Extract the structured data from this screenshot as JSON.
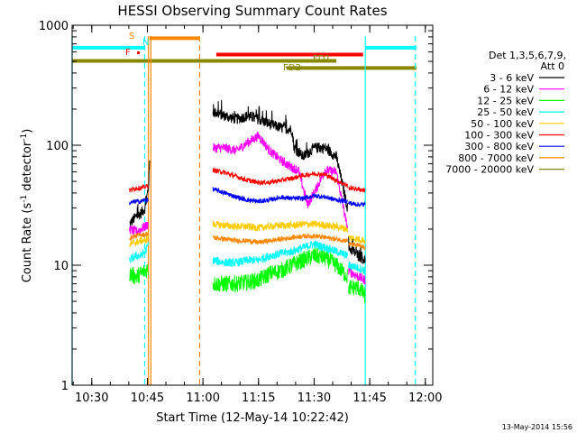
{
  "chart_data": {
    "type": "line",
    "title": "HESSI Observing Summary Count Rates",
    "xlabel": "Start Time (12-May-14 10:22:42)",
    "ylabel_main": "Count Rate (s",
    "ylabel_sup1": "-1",
    "ylabel_mid": " detector",
    "ylabel_sup2": "-1",
    "ylabel_end": ")",
    "yscale": "log",
    "ylim": [
      1,
      1000
    ],
    "xlim": [
      10.4117,
      12.0333
    ],
    "x_ticks": [
      {
        "value": 10.5,
        "label": "10:30"
      },
      {
        "value": 10.75,
        "label": "10:45"
      },
      {
        "value": 11.0,
        "label": "11:00"
      },
      {
        "value": 11.25,
        "label": "11:15"
      },
      {
        "value": 11.5,
        "label": "11:30"
      },
      {
        "value": 11.75,
        "label": "11:45"
      },
      {
        "value": 12.0,
        "label": "12:00"
      }
    ],
    "y_ticks": [
      {
        "value": 1,
        "label": "1"
      },
      {
        "value": 10,
        "label": "10"
      },
      {
        "value": 100,
        "label": "100"
      },
      {
        "value": 1000,
        "label": "1000"
      }
    ],
    "legend": {
      "header1": "Det 1,3,5,6,7,9,",
      "header2": "Att 0",
      "placement": "right"
    },
    "series": [
      {
        "name": "3 - 6 keV",
        "color": "#000000",
        "noise": 0.045,
        "spikes": true,
        "segments": [
          {
            "points": [
              [
                10.67,
                22
              ],
              [
                10.695,
                25
              ],
              [
                10.72,
                27
              ],
              [
                10.74,
                30
              ],
              [
                10.755,
                45
              ],
              [
                10.76,
                70
              ]
            ]
          },
          {
            "points": [
              [
                11.045,
                190
              ],
              [
                11.1,
                175
              ],
              [
                11.15,
                165
              ],
              [
                11.2,
                175
              ],
              [
                11.25,
                165
              ],
              [
                11.3,
                150
              ],
              [
                11.35,
                140
              ],
              [
                11.4,
                135
              ],
              [
                11.41,
                95
              ],
              [
                11.45,
                80
              ],
              [
                11.5,
                95
              ],
              [
                11.55,
                95
              ],
              [
                11.6,
                80
              ],
              [
                11.65,
                30
              ]
            ]
          },
          {
            "points": [
              [
                11.655,
                14
              ],
              [
                11.7,
                12
              ],
              [
                11.73,
                11
              ]
            ]
          }
        ]
      },
      {
        "name": "6 - 12 keV",
        "color": "#ff00ff",
        "noise": 0.04,
        "segments": [
          {
            "points": [
              [
                10.67,
                20
              ],
              [
                10.7,
                19
              ],
              [
                10.72,
                20
              ],
              [
                10.74,
                21
              ],
              [
                10.755,
                22
              ]
            ]
          },
          {
            "points": [
              [
                11.045,
                95
              ],
              [
                11.1,
                95
              ],
              [
                11.15,
                90
              ],
              [
                11.2,
                105
              ],
              [
                11.25,
                120
              ],
              [
                11.3,
                90
              ],
              [
                11.35,
                75
              ],
              [
                11.4,
                65
              ],
              [
                11.43,
                62
              ],
              [
                11.47,
                32
              ],
              [
                11.5,
                40
              ],
              [
                11.55,
                62
              ],
              [
                11.6,
                60
              ],
              [
                11.65,
                20
              ]
            ]
          },
          {
            "points": [
              [
                11.655,
                9
              ],
              [
                11.7,
                8
              ],
              [
                11.73,
                7.5
              ]
            ]
          }
        ]
      },
      {
        "name": "12 - 25 keV",
        "color": "#00ff00",
        "noise": 0.07,
        "segments": [
          {
            "points": [
              [
                10.67,
                8.5
              ],
              [
                10.7,
                8
              ],
              [
                10.72,
                8.5
              ],
              [
                10.74,
                9
              ],
              [
                10.755,
                9.5
              ]
            ]
          },
          {
            "points": [
              [
                11.045,
                7
              ],
              [
                11.1,
                7
              ],
              [
                11.15,
                7
              ],
              [
                11.2,
                7.2
              ],
              [
                11.25,
                7.5
              ],
              [
                11.3,
                8.5
              ],
              [
                11.35,
                9
              ],
              [
                11.4,
                10
              ],
              [
                11.45,
                11
              ],
              [
                11.5,
                12
              ],
              [
                11.55,
                11.5
              ],
              [
                11.6,
                10
              ],
              [
                11.65,
                8
              ]
            ]
          },
          {
            "points": [
              [
                11.655,
                6.5
              ],
              [
                11.7,
                6.5
              ],
              [
                11.73,
                5.5
              ]
            ]
          }
        ]
      },
      {
        "name": "25 - 50 keV",
        "color": "#00ffff",
        "noise": 0.035,
        "segments": [
          {
            "points": [
              [
                10.67,
                11
              ],
              [
                10.7,
                12
              ],
              [
                10.72,
                12
              ],
              [
                10.74,
                13
              ],
              [
                10.755,
                15
              ]
            ]
          },
          {
            "points": [
              [
                11.045,
                11
              ],
              [
                11.1,
                10.5
              ],
              [
                11.15,
                10.5
              ],
              [
                11.2,
                11
              ],
              [
                11.25,
                11
              ],
              [
                11.3,
                12
              ],
              [
                11.35,
                12.5
              ],
              [
                11.4,
                13
              ],
              [
                11.45,
                14
              ],
              [
                11.5,
                15
              ],
              [
                11.55,
                14
              ],
              [
                11.6,
                13
              ],
              [
                11.65,
                12
              ]
            ]
          },
          {
            "points": [
              [
                11.655,
                10
              ],
              [
                11.7,
                9.5
              ],
              [
                11.73,
                9
              ]
            ]
          }
        ]
      },
      {
        "name": "50 - 100 keV",
        "color": "#ffcc00",
        "noise": 0.03,
        "segments": [
          {
            "points": [
              [
                10.67,
                15
              ],
              [
                10.7,
                15.5
              ],
              [
                10.72,
                16
              ],
              [
                10.74,
                16
              ],
              [
                10.755,
                17
              ]
            ]
          },
          {
            "points": [
              [
                11.045,
                22
              ],
              [
                11.1,
                21.5
              ],
              [
                11.15,
                21
              ],
              [
                11.2,
                21
              ],
              [
                11.25,
                20.5
              ],
              [
                11.3,
                21
              ],
              [
                11.35,
                21.5
              ],
              [
                11.4,
                21.5
              ],
              [
                11.45,
                22
              ],
              [
                11.5,
                22
              ],
              [
                11.55,
                21.5
              ],
              [
                11.6,
                21
              ],
              [
                11.65,
                20
              ]
            ]
          },
          {
            "points": [
              [
                11.655,
                17
              ],
              [
                11.7,
                16.5
              ],
              [
                11.73,
                16
              ]
            ]
          }
        ]
      },
      {
        "name": "100 - 300 keV",
        "color": "#ff0000",
        "noise": 0.02,
        "segments": [
          {
            "points": [
              [
                10.67,
                42
              ],
              [
                10.7,
                44
              ],
              [
                10.72,
                44
              ],
              [
                10.74,
                45
              ],
              [
                10.755,
                46
              ]
            ]
          },
          {
            "points": [
              [
                11.045,
                62
              ],
              [
                11.1,
                59
              ],
              [
                11.15,
                55
              ],
              [
                11.2,
                51
              ],
              [
                11.25,
                49
              ],
              [
                11.3,
                49
              ],
              [
                11.35,
                51
              ],
              [
                11.4,
                53
              ],
              [
                11.45,
                56
              ],
              [
                11.5,
                58
              ],
              [
                11.55,
                57
              ],
              [
                11.6,
                51
              ],
              [
                11.65,
                46
              ]
            ]
          },
          {
            "points": [
              [
                11.655,
                44
              ],
              [
                11.7,
                43
              ],
              [
                11.73,
                42
              ]
            ]
          }
        ]
      },
      {
        "name": "300 - 800 keV",
        "color": "#0000ff",
        "noise": 0.02,
        "segments": [
          {
            "points": [
              [
                10.67,
                33
              ],
              [
                10.7,
                34
              ],
              [
                10.72,
                34
              ],
              [
                10.74,
                35
              ],
              [
                10.755,
                35
              ]
            ]
          },
          {
            "points": [
              [
                11.045,
                43
              ],
              [
                11.1,
                40
              ],
              [
                11.15,
                37
              ],
              [
                11.2,
                35
              ],
              [
                11.25,
                34
              ],
              [
                11.3,
                35
              ],
              [
                11.35,
                37
              ],
              [
                11.4,
                36
              ],
              [
                11.45,
                36
              ],
              [
                11.5,
                38
              ],
              [
                11.55,
                37
              ],
              [
                11.6,
                35
              ],
              [
                11.65,
                34
              ]
            ]
          },
          {
            "points": [
              [
                11.655,
                33
              ],
              [
                11.7,
                32
              ],
              [
                11.73,
                32
              ]
            ]
          }
        ]
      },
      {
        "name": "800 - 7000 keV",
        "color": "#ff8800",
        "noise": 0.02,
        "segments": [
          {
            "points": [
              [
                10.67,
                17
              ],
              [
                10.7,
                17.5
              ],
              [
                10.72,
                18
              ],
              [
                10.74,
                18
              ],
              [
                10.755,
                18.5
              ]
            ]
          },
          {
            "points": [
              [
                11.045,
                17
              ],
              [
                11.1,
                16.5
              ],
              [
                11.15,
                16
              ],
              [
                11.2,
                16
              ],
              [
                11.25,
                15.5
              ],
              [
                11.3,
                16
              ],
              [
                11.35,
                16.5
              ],
              [
                11.4,
                17
              ],
              [
                11.45,
                17.5
              ],
              [
                11.5,
                17.5
              ],
              [
                11.55,
                17
              ],
              [
                11.6,
                16.5
              ],
              [
                11.65,
                16
              ]
            ]
          },
          {
            "points": [
              [
                11.655,
                15
              ],
              [
                11.7,
                14.5
              ],
              [
                11.73,
                14
              ]
            ]
          }
        ]
      },
      {
        "name": "7000 - 20000 keV",
        "color": "#888800",
        "noise": 0.0,
        "segments": []
      }
    ],
    "annotations": {
      "S": "S",
      "N": "N",
      "F": "F",
      "FD1": "FD1",
      "FD2": "FD2"
    },
    "event_bars": [
      {
        "label_key": "cyan_top_left",
        "color": "#00ffff",
        "x1": 10.4117,
        "x2": 10.74,
        "y": 650
      },
      {
        "label_key": "cyan_top_right",
        "color": "#00ffff",
        "x1": 11.73,
        "x2": 11.96,
        "y": 650
      },
      {
        "label_key": "orange_S",
        "color": "#ff8800",
        "x1": 10.76,
        "x2": 10.985,
        "y": 780
      },
      {
        "label_key": "red_FD1",
        "color": "#ff0000",
        "x1": 11.06,
        "x2": 11.72,
        "y": 570
      },
      {
        "label_key": "olive_top",
        "color": "#888800",
        "x1": 10.4117,
        "x2": 11.6,
        "y": 505
      },
      {
        "label_key": "olive_FD2",
        "color": "#888800",
        "x1": 11.375,
        "x2": 11.96,
        "y": 440
      }
    ],
    "vertical_lines": [
      {
        "color": "#00ffff",
        "x": 10.4117,
        "style": "solid"
      },
      {
        "color": "#00ffff",
        "x": 10.738,
        "style": "dashed"
      },
      {
        "color": "#00ffff",
        "x": 11.73,
        "style": "solid"
      },
      {
        "color": "#00ffff",
        "x": 11.955,
        "style": "dashed"
      },
      {
        "color": "#ff8800",
        "x": 10.766,
        "style": "solid"
      },
      {
        "color": "#ff8800",
        "x": 10.985,
        "style": "dashed"
      },
      {
        "color": "#ff8800",
        "x": 10.755,
        "style": "solid"
      }
    ]
  },
  "footer": {
    "timestamp": "13-May-2014 15:56"
  }
}
